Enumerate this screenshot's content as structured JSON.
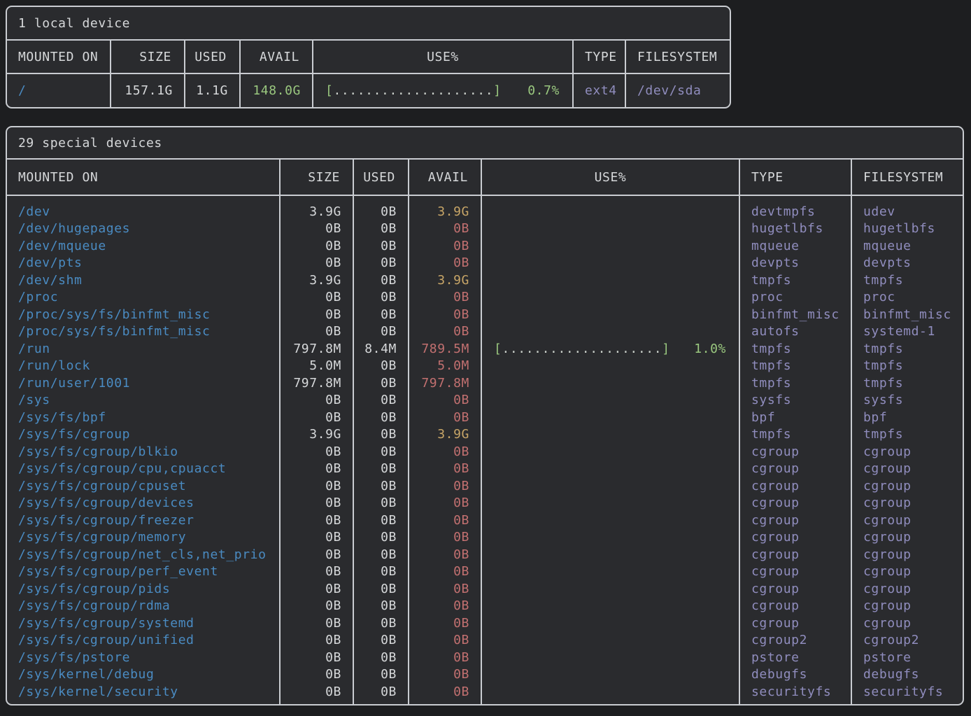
{
  "colors": {
    "background": "#1d1e20",
    "panel_bg": "#2a2b2e",
    "border": "#c9ccd1",
    "text": "#d6d8da",
    "mount": "#4a8bc2",
    "fs": "#908dbe",
    "green": "#9ac87f",
    "yellow": "#c7a567",
    "red": "#c27070",
    "dots": "#ccd2cc"
  },
  "bar": {
    "left_bracket": "[",
    "dots": "....................",
    "right_bracket": "]"
  },
  "local": {
    "title": "1 local device",
    "columns": [
      "MOUNTED ON",
      "SIZE",
      "USED",
      "AVAIL",
      "USE%",
      "TYPE",
      "FILESYSTEM"
    ],
    "rows": [
      {
        "mounted_on": "/",
        "size": "157.1G",
        "used": "1.1G",
        "avail": "148.0G",
        "avail_color": "green",
        "has_bar": true,
        "use_pct": "0.7%",
        "type": "ext4",
        "filesystem": "/dev/sda"
      }
    ]
  },
  "special": {
    "title": "29 special devices",
    "columns": [
      "MOUNTED ON",
      "SIZE",
      "USED",
      "AVAIL",
      "USE%",
      "TYPE",
      "FILESYSTEM"
    ],
    "rows": [
      {
        "mounted_on": "/dev",
        "size": "3.9G",
        "used": "0B",
        "avail": "3.9G",
        "avail_color": "yellow",
        "has_bar": false,
        "use_pct": "",
        "type": "devtmpfs",
        "filesystem": "udev"
      },
      {
        "mounted_on": "/dev/hugepages",
        "size": "0B",
        "used": "0B",
        "avail": "0B",
        "avail_color": "red",
        "has_bar": false,
        "use_pct": "",
        "type": "hugetlbfs",
        "filesystem": "hugetlbfs"
      },
      {
        "mounted_on": "/dev/mqueue",
        "size": "0B",
        "used": "0B",
        "avail": "0B",
        "avail_color": "red",
        "has_bar": false,
        "use_pct": "",
        "type": "mqueue",
        "filesystem": "mqueue"
      },
      {
        "mounted_on": "/dev/pts",
        "size": "0B",
        "used": "0B",
        "avail": "0B",
        "avail_color": "red",
        "has_bar": false,
        "use_pct": "",
        "type": "devpts",
        "filesystem": "devpts"
      },
      {
        "mounted_on": "/dev/shm",
        "size": "3.9G",
        "used": "0B",
        "avail": "3.9G",
        "avail_color": "yellow",
        "has_bar": false,
        "use_pct": "",
        "type": "tmpfs",
        "filesystem": "tmpfs"
      },
      {
        "mounted_on": "/proc",
        "size": "0B",
        "used": "0B",
        "avail": "0B",
        "avail_color": "red",
        "has_bar": false,
        "use_pct": "",
        "type": "proc",
        "filesystem": "proc"
      },
      {
        "mounted_on": "/proc/sys/fs/binfmt_misc",
        "size": "0B",
        "used": "0B",
        "avail": "0B",
        "avail_color": "red",
        "has_bar": false,
        "use_pct": "",
        "type": "binfmt_misc",
        "filesystem": "binfmt_misc"
      },
      {
        "mounted_on": "/proc/sys/fs/binfmt_misc",
        "size": "0B",
        "used": "0B",
        "avail": "0B",
        "avail_color": "red",
        "has_bar": false,
        "use_pct": "",
        "type": "autofs",
        "filesystem": "systemd-1"
      },
      {
        "mounted_on": "/run",
        "size": "797.8M",
        "used": "8.4M",
        "avail": "789.5M",
        "avail_color": "red",
        "has_bar": true,
        "use_pct": "1.0%",
        "type": "tmpfs",
        "filesystem": "tmpfs"
      },
      {
        "mounted_on": "/run/lock",
        "size": "5.0M",
        "used": "0B",
        "avail": "5.0M",
        "avail_color": "red",
        "has_bar": false,
        "use_pct": "",
        "type": "tmpfs",
        "filesystem": "tmpfs"
      },
      {
        "mounted_on": "/run/user/1001",
        "size": "797.8M",
        "used": "0B",
        "avail": "797.8M",
        "avail_color": "red",
        "has_bar": false,
        "use_pct": "",
        "type": "tmpfs",
        "filesystem": "tmpfs"
      },
      {
        "mounted_on": "/sys",
        "size": "0B",
        "used": "0B",
        "avail": "0B",
        "avail_color": "red",
        "has_bar": false,
        "use_pct": "",
        "type": "sysfs",
        "filesystem": "sysfs"
      },
      {
        "mounted_on": "/sys/fs/bpf",
        "size": "0B",
        "used": "0B",
        "avail": "0B",
        "avail_color": "red",
        "has_bar": false,
        "use_pct": "",
        "type": "bpf",
        "filesystem": "bpf"
      },
      {
        "mounted_on": "/sys/fs/cgroup",
        "size": "3.9G",
        "used": "0B",
        "avail": "3.9G",
        "avail_color": "yellow",
        "has_bar": false,
        "use_pct": "",
        "type": "tmpfs",
        "filesystem": "tmpfs"
      },
      {
        "mounted_on": "/sys/fs/cgroup/blkio",
        "size": "0B",
        "used": "0B",
        "avail": "0B",
        "avail_color": "red",
        "has_bar": false,
        "use_pct": "",
        "type": "cgroup",
        "filesystem": "cgroup"
      },
      {
        "mounted_on": "/sys/fs/cgroup/cpu,cpuacct",
        "size": "0B",
        "used": "0B",
        "avail": "0B",
        "avail_color": "red",
        "has_bar": false,
        "use_pct": "",
        "type": "cgroup",
        "filesystem": "cgroup"
      },
      {
        "mounted_on": "/sys/fs/cgroup/cpuset",
        "size": "0B",
        "used": "0B",
        "avail": "0B",
        "avail_color": "red",
        "has_bar": false,
        "use_pct": "",
        "type": "cgroup",
        "filesystem": "cgroup"
      },
      {
        "mounted_on": "/sys/fs/cgroup/devices",
        "size": "0B",
        "used": "0B",
        "avail": "0B",
        "avail_color": "red",
        "has_bar": false,
        "use_pct": "",
        "type": "cgroup",
        "filesystem": "cgroup"
      },
      {
        "mounted_on": "/sys/fs/cgroup/freezer",
        "size": "0B",
        "used": "0B",
        "avail": "0B",
        "avail_color": "red",
        "has_bar": false,
        "use_pct": "",
        "type": "cgroup",
        "filesystem": "cgroup"
      },
      {
        "mounted_on": "/sys/fs/cgroup/memory",
        "size": "0B",
        "used": "0B",
        "avail": "0B",
        "avail_color": "red",
        "has_bar": false,
        "use_pct": "",
        "type": "cgroup",
        "filesystem": "cgroup"
      },
      {
        "mounted_on": "/sys/fs/cgroup/net_cls,net_prio",
        "size": "0B",
        "used": "0B",
        "avail": "0B",
        "avail_color": "red",
        "has_bar": false,
        "use_pct": "",
        "type": "cgroup",
        "filesystem": "cgroup"
      },
      {
        "mounted_on": "/sys/fs/cgroup/perf_event",
        "size": "0B",
        "used": "0B",
        "avail": "0B",
        "avail_color": "red",
        "has_bar": false,
        "use_pct": "",
        "type": "cgroup",
        "filesystem": "cgroup"
      },
      {
        "mounted_on": "/sys/fs/cgroup/pids",
        "size": "0B",
        "used": "0B",
        "avail": "0B",
        "avail_color": "red",
        "has_bar": false,
        "use_pct": "",
        "type": "cgroup",
        "filesystem": "cgroup"
      },
      {
        "mounted_on": "/sys/fs/cgroup/rdma",
        "size": "0B",
        "used": "0B",
        "avail": "0B",
        "avail_color": "red",
        "has_bar": false,
        "use_pct": "",
        "type": "cgroup",
        "filesystem": "cgroup"
      },
      {
        "mounted_on": "/sys/fs/cgroup/systemd",
        "size": "0B",
        "used": "0B",
        "avail": "0B",
        "avail_color": "red",
        "has_bar": false,
        "use_pct": "",
        "type": "cgroup",
        "filesystem": "cgroup"
      },
      {
        "mounted_on": "/sys/fs/cgroup/unified",
        "size": "0B",
        "used": "0B",
        "avail": "0B",
        "avail_color": "red",
        "has_bar": false,
        "use_pct": "",
        "type": "cgroup2",
        "filesystem": "cgroup2"
      },
      {
        "mounted_on": "/sys/fs/pstore",
        "size": "0B",
        "used": "0B",
        "avail": "0B",
        "avail_color": "red",
        "has_bar": false,
        "use_pct": "",
        "type": "pstore",
        "filesystem": "pstore"
      },
      {
        "mounted_on": "/sys/kernel/debug",
        "size": "0B",
        "used": "0B",
        "avail": "0B",
        "avail_color": "red",
        "has_bar": false,
        "use_pct": "",
        "type": "debugfs",
        "filesystem": "debugfs"
      },
      {
        "mounted_on": "/sys/kernel/security",
        "size": "0B",
        "used": "0B",
        "avail": "0B",
        "avail_color": "red",
        "has_bar": false,
        "use_pct": "",
        "type": "securityfs",
        "filesystem": "securityfs"
      }
    ]
  }
}
